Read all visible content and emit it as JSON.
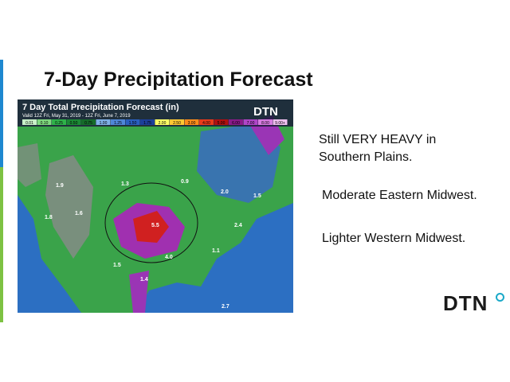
{
  "header": {
    "title": "7-Day Precipitation Forecast"
  },
  "map": {
    "title": "7 Day Total Precipitation Forecast (in)",
    "valid": "Valid 12Z Fri, May 31, 2019 - 12Z Fri, June 7, 2019",
    "logo": "DTN",
    "legend": [
      "0.01",
      "0.10",
      "0.25",
      "0.50",
      "0.75",
      "1.00",
      "1.25",
      "1.50",
      "1.75",
      "2.00",
      "2.50",
      "3.00",
      "4.00",
      "5.00",
      "6.00",
      "7.00",
      "8.00",
      "9.00+"
    ],
    "labels": [
      "1.9",
      "1.3",
      "0.9",
      "2.0",
      "1.5",
      "1.6",
      "1.8",
      "5.5",
      "2.4",
      "1.1",
      "4.0",
      "1.5",
      "1.4",
      "2.7"
    ]
  },
  "bullets": [
    "Still VERY HEAVY in Southern Plains.",
    "Moderate Eastern Midwest.",
    "Lighter Western Midwest."
  ],
  "footer": {
    "logo": "DTN"
  }
}
